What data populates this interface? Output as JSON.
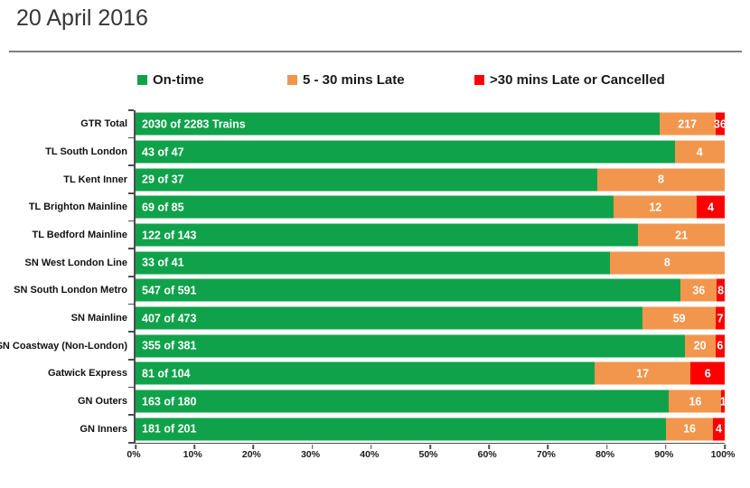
{
  "title": "20 April 2016",
  "legend": [
    {
      "label": "On-time",
      "color": "#10A24A"
    },
    {
      "label": "5 - 30 mins Late",
      "color": "#F2964E"
    },
    {
      "label": ">30 mins Late or Cancelled",
      "color": "#FE0000"
    }
  ],
  "chart_data": {
    "type": "bar",
    "orientation": "horizontal",
    "stacked": true,
    "title": "20 April 2016",
    "categories": [
      "GTR Total",
      "TL South London",
      "TL Kent Inner",
      "TL Brighton Mainline",
      "TL Bedford Mainline",
      "SN West London Line",
      "SN South London Metro",
      "SN Mainline",
      "SN Coastway (Non-London)",
      "Gatwick Express",
      "GN Outers",
      "GN Inners"
    ],
    "totals": [
      2283,
      47,
      37,
      85,
      143,
      41,
      591,
      473,
      381,
      104,
      180,
      201
    ],
    "series": [
      {
        "name": "On-time",
        "color": "#10A24A",
        "values": [
          2030,
          43,
          29,
          69,
          122,
          33,
          547,
          407,
          355,
          81,
          163,
          181
        ]
      },
      {
        "name": "5 - 30 mins Late",
        "color": "#F2964E",
        "values": [
          217,
          4,
          8,
          12,
          21,
          8,
          36,
          59,
          20,
          17,
          16,
          16
        ]
      },
      {
        "name": ">30 mins Late or Cancelled",
        "color": "#FE0000",
        "values": [
          36,
          0,
          0,
          4,
          0,
          0,
          8,
          7,
          6,
          6,
          1,
          4
        ]
      }
    ],
    "bar_labels_ontime": [
      "2030 of 2283 Trains",
      "43 of 47",
      "29 of 37",
      "69 of 85",
      "122 of 143",
      "33 of 41",
      "547 of 591",
      "407 of 473",
      "355 of 381",
      "81 of 104",
      "163 of 180",
      "181 of 201"
    ],
    "x_ticks": [
      "0%",
      "10%",
      "20%",
      "30%",
      "40%",
      "50%",
      "60%",
      "70%",
      "80%",
      "90%",
      "100%"
    ],
    "xlim": [
      0,
      100
    ],
    "grid": false,
    "legend_position": "top"
  }
}
